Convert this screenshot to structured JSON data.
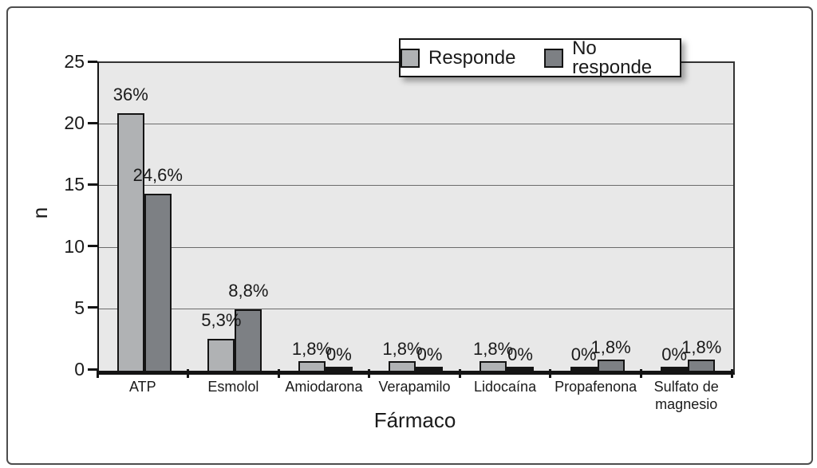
{
  "figure": {
    "background": "#ffffff",
    "border_color": "#4d4d4d"
  },
  "chart_data": {
    "type": "bar",
    "title": "",
    "xlabel": "Fármaco",
    "ylabel": "n",
    "ylim": [
      0,
      25
    ],
    "yticks": [
      0,
      5,
      10,
      15,
      20,
      25
    ],
    "grid": "horizontal",
    "plot_background": "#e8e8e8",
    "legend_position": "top-center-inside",
    "categories": [
      "ATP",
      "Esmolol",
      "Amiodarona",
      "Verapamilo",
      "Lidocaína",
      "Propafenona",
      "Sulfato de magnesio"
    ],
    "series": [
      {
        "name": "Responde",
        "color": "#b0b2b4",
        "values": [
          20.9,
          2.6,
          0.8,
          0.8,
          0.8,
          0.1,
          0.1
        ],
        "labels": [
          "36%",
          "5,3%",
          "1,8%",
          "1,8%",
          "1,8%",
          "0%",
          "0%"
        ]
      },
      {
        "name": "No responde",
        "color": "#7d8084",
        "values": [
          14.4,
          5.0,
          0.1,
          0.1,
          0.1,
          0.9,
          0.9
        ],
        "labels": [
          "24,6%",
          "8,8%",
          "0%",
          "0%",
          "0%",
          "1,8%",
          "1,8%"
        ]
      }
    ]
  }
}
